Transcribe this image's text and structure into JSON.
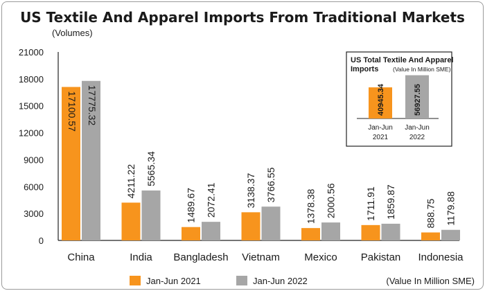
{
  "chart_data": [
    {
      "type": "bar",
      "title": "US Textile And Apparel Imports From Traditional Markets",
      "unit_label": "(Volumes)",
      "categories": [
        "China",
        "India",
        "Bangladesh",
        "Vietnam",
        "Mexico",
        "Pakistan",
        "Indonesia"
      ],
      "series": [
        {
          "name": "Jan-Jun 2021",
          "color": "#f7941d",
          "values": [
            17100.57,
            4211.22,
            1489.67,
            3138.37,
            1378.38,
            1711.91,
            888.75
          ],
          "labels": [
            "17100.57",
            "4211.22",
            "1489.67",
            "3138.37",
            "1378.38",
            "1711.91",
            "888.75"
          ]
        },
        {
          "name": "Jan-Jun 2022",
          "color": "#a6a6a6",
          "values": [
            17775.32,
            5565.34,
            2072.41,
            3766.55,
            2000.56,
            1859.87,
            1179.88
          ],
          "labels": [
            "17775.32",
            "5565.34",
            "2072.41",
            "3766.55",
            "2000.56",
            "1859.87",
            "1179.88"
          ]
        }
      ],
      "ylim": [
        0,
        21000
      ],
      "yticks": [
        "0",
        "3000",
        "6000",
        "9000",
        "12000",
        "15000",
        "18000",
        "21000"
      ],
      "grid": false,
      "legend": "bottom-left",
      "value_note": "(Value In Million SME)"
    },
    {
      "type": "bar",
      "title_line1": "US Total Textile And Apparel",
      "title_line2": "Imports",
      "subtitle": "(Value In Million SME)",
      "categories": [
        {
          "line1": "Jan-Jun",
          "line2": "2021"
        },
        {
          "line1": "Jan-Jun",
          "line2": "2022"
        }
      ],
      "values": [
        40945.34,
        56927.55
      ],
      "labels": [
        "40945.34",
        "56927.55"
      ],
      "colors": [
        "#f7941d",
        "#a6a6a6"
      ],
      "ylim": [
        0,
        62000
      ]
    }
  ]
}
